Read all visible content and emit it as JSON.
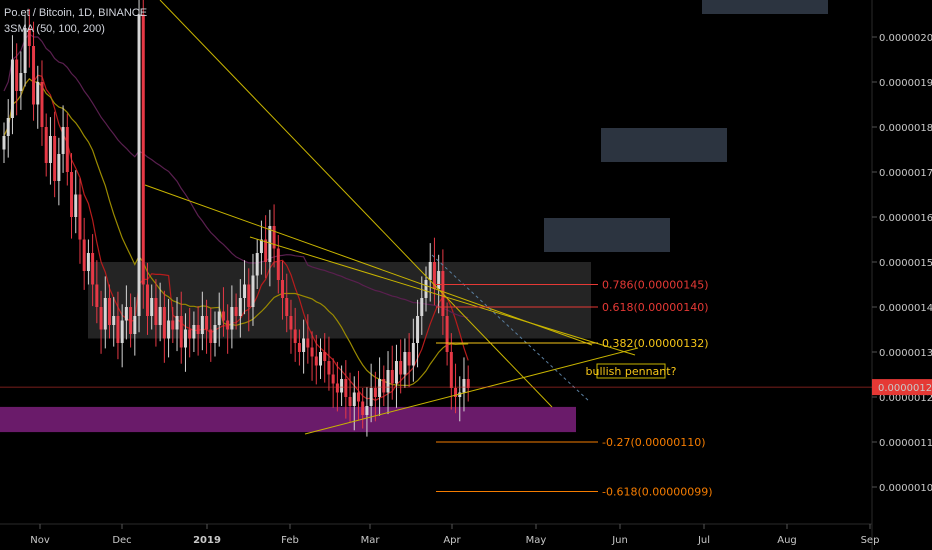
{
  "header": {
    "title": "Po.et / Bitcoin, 1D, BINANCE",
    "indicator": "3SMA (50, 100, 200)"
  },
  "colors": {
    "background": "#000000",
    "up": "#d6d6d6",
    "down": "#e63946",
    "trendline": "#c8b400",
    "sma50": "#b71c1c",
    "sma100": "#9a8a00",
    "sma200": "#5a1f4f",
    "support_zone": "#6a1b6a",
    "price_tag": "#e53935",
    "fib_red": "#e53935",
    "fib_orange": "#f57c00",
    "fib_yellow": "#f5c518"
  },
  "chart_data": {
    "type": "candlestick",
    "pair": "Po.et / Bitcoin",
    "timeframe": "1D",
    "exchange": "BINANCE",
    "y_unit": "BTC",
    "ylim": [
      9.5e-07,
      2.09e-06
    ],
    "y_ticks": [
      "0.00000200",
      "0.00000190",
      "0.00000180",
      "0.00000170",
      "0.00000160",
      "0.00000150",
      "0.00000140",
      "0.00000130",
      "0.00000120",
      "0.00000110",
      "0.00000100"
    ],
    "x_ticks": [
      "Nov",
      "Dec",
      "2019",
      "Feb",
      "Mar",
      "Apr",
      "May",
      "Jun",
      "Jul",
      "Aug",
      "Sep"
    ],
    "last_price": "0.00000122",
    "fib_levels": [
      {
        "label": "0.786(0.00000145)",
        "value": 1.45e-06,
        "color": "#e53935"
      },
      {
        "label": "0.618(0.00000140)",
        "value": 1.4e-06,
        "color": "#e53935"
      },
      {
        "label": "0.382(0.00000132)",
        "value": 1.32e-06,
        "color": "#f5c518"
      },
      {
        "label": "-0.27(0.00000110)",
        "value": 1.1e-06,
        "color": "#f57c00"
      },
      {
        "label": "-0.618(0.00000099)",
        "value": 9.9e-07,
        "color": "#f57c00"
      }
    ],
    "annotations": [
      "bullish pennant?"
    ],
    "sma_periods": [
      50,
      100,
      200
    ],
    "candles_close": [
      1.78,
      1.82,
      1.95,
      1.88,
      1.92,
      2.02,
      1.98,
      1.85,
      1.9,
      1.8,
      1.72,
      1.78,
      1.68,
      1.74,
      1.8,
      1.7,
      1.6,
      1.65,
      1.55,
      1.48,
      1.52,
      1.45,
      1.4,
      1.35,
      1.42,
      1.36,
      1.38,
      1.32,
      1.37,
      1.4,
      1.34,
      1.38,
      2.05,
      1.45,
      1.38,
      1.42,
      1.36,
      1.4,
      1.33,
      1.37,
      1.35,
      1.38,
      1.31,
      1.35,
      1.33,
      1.36,
      1.34,
      1.38,
      1.35,
      1.32,
      1.36,
      1.39,
      1.37,
      1.35,
      1.4,
      1.38,
      1.42,
      1.45,
      1.4,
      1.47,
      1.52,
      1.55,
      1.5,
      1.58,
      1.53,
      1.46,
      1.42,
      1.38,
      1.35,
      1.32,
      1.3,
      1.33,
      1.31,
      1.29,
      1.27,
      1.3,
      1.28,
      1.25,
      1.23,
      1.21,
      1.24,
      1.2,
      1.18,
      1.21,
      1.19,
      1.16,
      1.18,
      1.22,
      1.2,
      1.24,
      1.21,
      1.26,
      1.23,
      1.28,
      1.25,
      1.3,
      1.27,
      1.32,
      1.38,
      1.42,
      1.46,
      1.5,
      1.44,
      1.48,
      1.38,
      1.3,
      1.22,
      1.2,
      1.21,
      1.24,
      1.22
    ]
  }
}
